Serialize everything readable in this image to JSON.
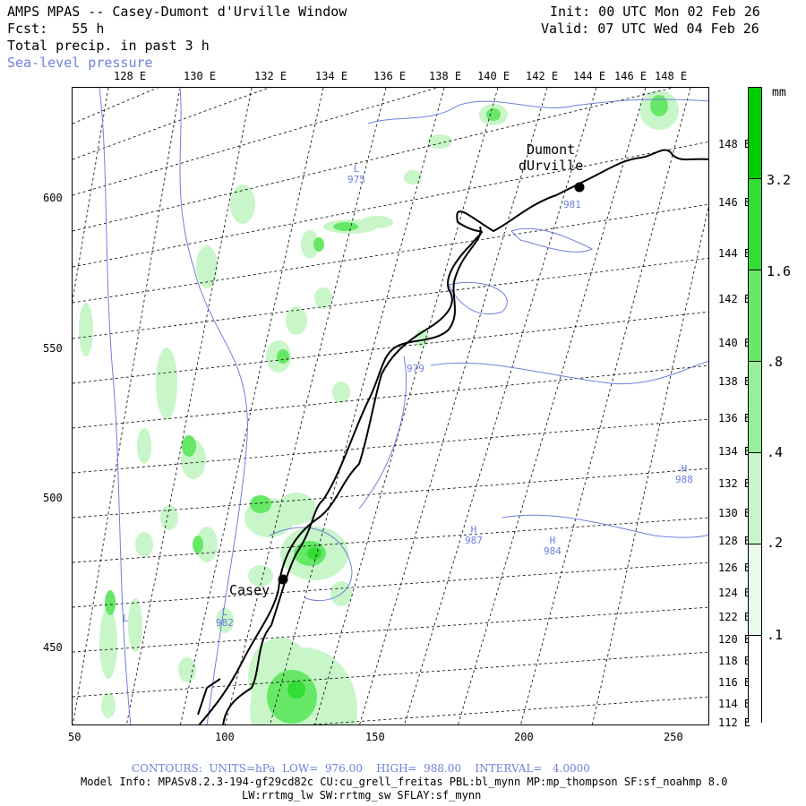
{
  "header": {
    "title": "AMPS MPAS -- Casey-Dumont d'Urville Window",
    "fcst": "Fcst:   55 h",
    "field": "Total precip. in past 3 h",
    "overlay": "Sea-level pressure",
    "init": "Init: 00 UTC Mon 02 Feb 26",
    "valid": "Valid: 07 UTC Wed 04 Feb 26"
  },
  "axes": {
    "top_lon_ticks": [
      "128 E",
      "130 E",
      "132 E",
      "134 E",
      "136 E",
      "138 E",
      "140 E",
      "142 E",
      "144 E",
      "146 E",
      "148 E"
    ],
    "left_ticks": [
      "600",
      "550",
      "500",
      "450"
    ],
    "bottom_ticks": [
      "50",
      "100",
      "150",
      "200",
      "250"
    ],
    "right_lon_ticks": [
      "148 E",
      "146 E",
      "144 E",
      "142 E",
      "140 E",
      "138 E",
      "136 E",
      "134 E",
      "132 E",
      "130 E",
      "128 E",
      "126 E",
      "124 E",
      "122 E",
      "120 E",
      "118 E",
      "116 E",
      "114 E",
      "112 E"
    ]
  },
  "stations": [
    {
      "name": "Dumont\ndUrville",
      "label": "Dumont dUrville"
    },
    {
      "name": "Casey",
      "label": "Casey"
    }
  ],
  "pressure_labels": [
    {
      "type": "L",
      "value": "975"
    },
    {
      "type": "",
      "value": "981"
    },
    {
      "type": "",
      "value": "979"
    },
    {
      "type": "H",
      "value": "988"
    },
    {
      "type": "H",
      "value": "987"
    },
    {
      "type": "H",
      "value": "984"
    },
    {
      "type": "L",
      "value": "982"
    },
    {
      "type": "L",
      "value": ""
    }
  ],
  "colorbar": {
    "unit": "mm",
    "labels": [
      "3.2",
      "1.6",
      ".8",
      ".4",
      ".2",
      ".1"
    ],
    "colors": [
      "#00cc00",
      "#33dd33",
      "#66e866",
      "#99ef99",
      "#c8f6c8",
      "#e8fbe8"
    ]
  },
  "footer": {
    "contours": "CONTOURS:  UNITS=hPa  LOW=  976.00    HIGH=  988.00    INTERVAL=   4.0000",
    "model_info": "Model Info: MPASv8.2.3-194-gf29cd82c CU:cu_grell_freitas PBL:bl_mynn MP:mp_thompson SF:sf_noahmp 8.0",
    "model_info2": "LW:rrtmg_lw SW:rrtmg_sw SFLAY:sf_mynn"
  },
  "colors": {
    "contour": "#6f7fe0",
    "coast": "#000000",
    "precip_light": "#c8f6c8",
    "precip_dark": "#33dd33"
  }
}
